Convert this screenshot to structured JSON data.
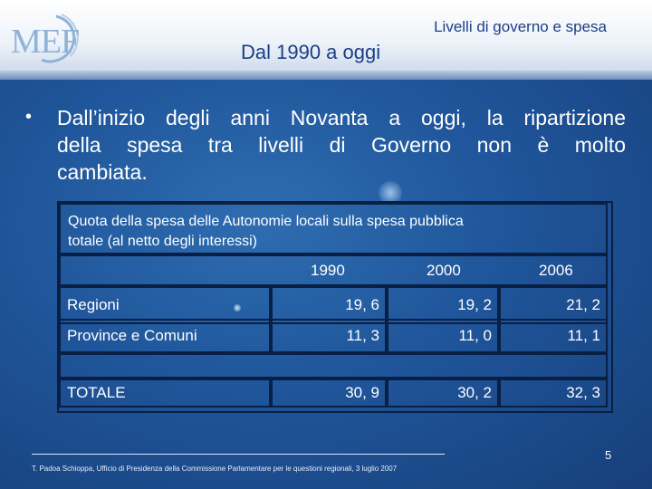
{
  "header": {
    "logo": "MEF",
    "subject": "Livelli di governo e spesa",
    "title": "Dal 1990 a oggi"
  },
  "content": {
    "bullet": "•",
    "text_lines": [
      "Dall’inizio degli anni Novanta a oggi, la ripartizione",
      "della spesa tra livelli di Governo non è molto",
      "cambiata."
    ]
  },
  "table": {
    "caption_lines": [
      "Quota della spesa delle Autonomie locali sulla spesa pubblica",
      "totale (al netto degli interessi)"
    ],
    "years": [
      "1990",
      "2000",
      "2006"
    ],
    "rows": [
      {
        "label": "Regioni",
        "values": [
          "19, 6",
          "19, 2",
          "21, 2"
        ]
      },
      {
        "label": "Province e Comuni",
        "values": [
          "11, 3",
          "11, 0",
          "11, 1"
        ]
      },
      {
        "label": "TOTALE",
        "values": [
          "30, 9",
          "30, 2",
          "32, 3"
        ]
      }
    ]
  },
  "footer": {
    "note": "T. Padoa Schioppa, Ufficio di Presidenza della Commissione Parlamentare per le questioni regionali, 3 luglio 2007",
    "page": "5"
  },
  "colors": {
    "background": "#1f559a",
    "title_text": "#1a3f86",
    "table_border": "#0a1f44"
  }
}
